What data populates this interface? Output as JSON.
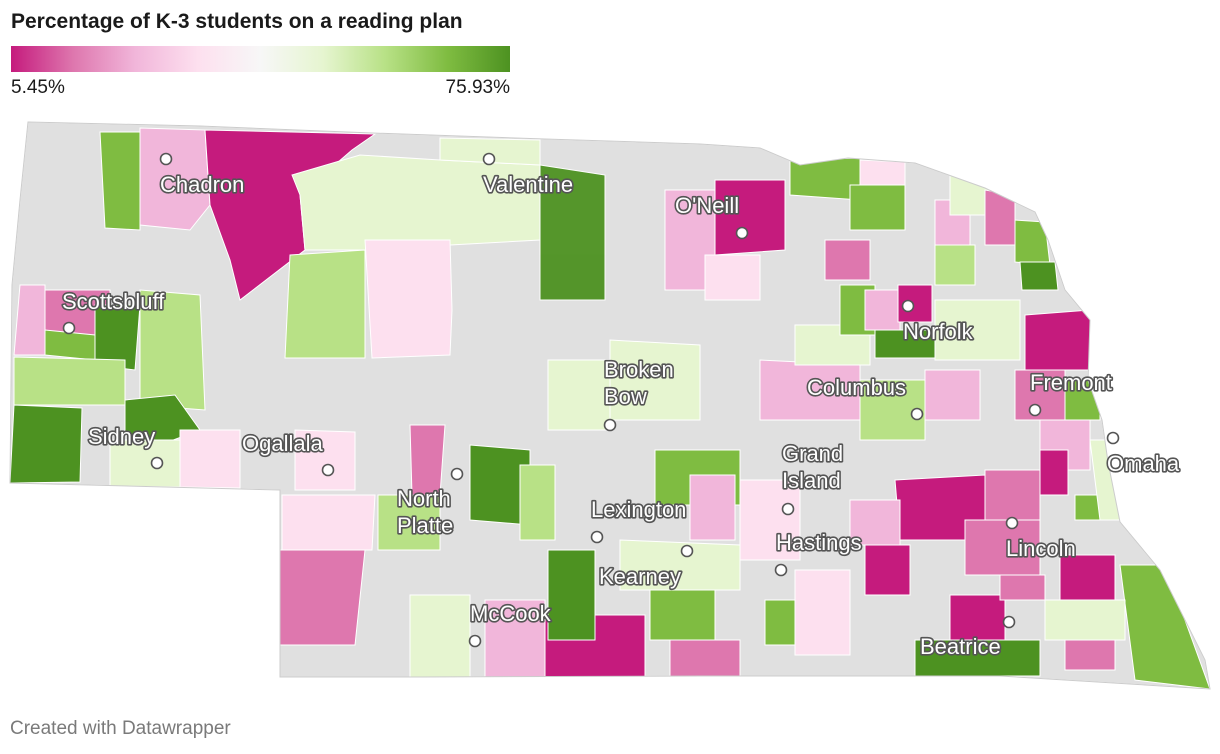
{
  "title": "Percentage of K-3 students on a reading plan",
  "legend": {
    "min_label": "5.45%",
    "max_label": "75.93%",
    "min_value": 5.45,
    "max_value": 75.93,
    "colors": [
      "#c51b7d",
      "#de77ae",
      "#f1b6da",
      "#fde0ef",
      "#f7f7f7",
      "#e6f5d0",
      "#b8e186",
      "#7fbc41",
      "#4d9221"
    ],
    "no_data_color": "#e0e0e0"
  },
  "cities": [
    {
      "name": "Chadron",
      "lines": [
        "Chadron"
      ]
    },
    {
      "name": "Valentine",
      "lines": [
        "Valentine"
      ]
    },
    {
      "name": "O'Neill",
      "lines": [
        "O'Neill"
      ]
    },
    {
      "name": "Scottsbluff",
      "lines": [
        "Scottsbluff"
      ]
    },
    {
      "name": "Norfolk",
      "lines": [
        "Norfolk"
      ]
    },
    {
      "name": "Broken Bow",
      "lines": [
        "Broken",
        "Bow"
      ]
    },
    {
      "name": "Columbus",
      "lines": [
        "Columbus"
      ]
    },
    {
      "name": "Fremont",
      "lines": [
        "Fremont"
      ]
    },
    {
      "name": "Sidney",
      "lines": [
        "Sidney"
      ]
    },
    {
      "name": "Ogallala",
      "lines": [
        "Ogallala"
      ]
    },
    {
      "name": "North Platte",
      "lines": [
        "North",
        "Platte"
      ]
    },
    {
      "name": "Grand Island",
      "lines": [
        "Grand",
        "Island"
      ]
    },
    {
      "name": "Omaha",
      "lines": [
        "Omaha"
      ]
    },
    {
      "name": "Lexington",
      "lines": [
        "Lexington"
      ]
    },
    {
      "name": "Kearney",
      "lines": [
        "Kearney"
      ]
    },
    {
      "name": "Hastings",
      "lines": [
        "Hastings"
      ]
    },
    {
      "name": "Lincoln",
      "lines": [
        "Lincoln"
      ]
    },
    {
      "name": "McCook",
      "lines": [
        "McCook"
      ]
    },
    {
      "name": "Beatrice",
      "lines": [
        "Beatrice"
      ]
    }
  ],
  "credit": "Created with Datawrapper"
}
